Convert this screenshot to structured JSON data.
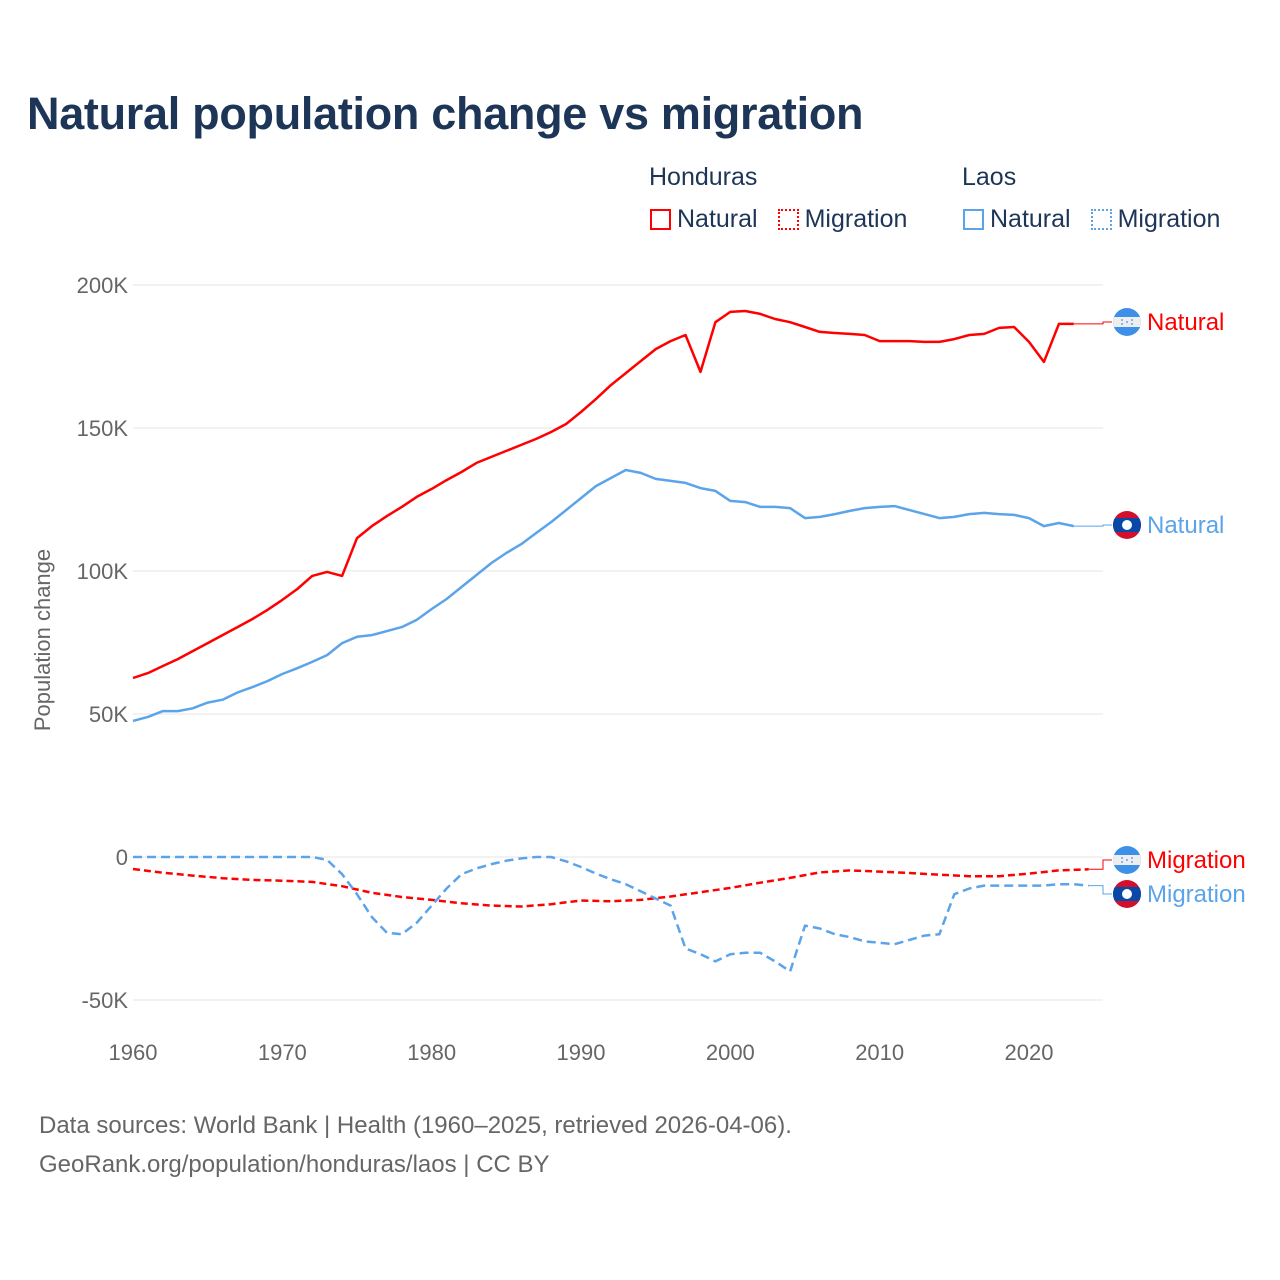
{
  "title": "Natural population change vs migration",
  "legend": {
    "groups": [
      {
        "name": "Honduras",
        "items": [
          "Natural",
          "Migration"
        ],
        "color": "#ff0000"
      },
      {
        "name": "Laos",
        "items": [
          "Natural",
          "Migration"
        ],
        "color": "#5ba4ea"
      }
    ]
  },
  "footer": {
    "line1": "Data sources: World Bank | Health (1960–2025, retrieved 2026-04-06).",
    "line2": "GeoRank.org/population/honduras/laos | CC BY"
  },
  "chart_data": {
    "type": "line",
    "title": "Natural population change vs migration",
    "xlabel": "",
    "ylabel": "Population change",
    "xlim": [
      1960,
      2025
    ],
    "ylim": [
      -50000,
      200000
    ],
    "x_ticks": [
      "1960",
      "1970",
      "1980",
      "1990",
      "2000",
      "2010",
      "2020"
    ],
    "y_ticks": [
      {
        "value": 200000,
        "label": "200K"
      },
      {
        "value": 150000,
        "label": "150K"
      },
      {
        "value": 100000,
        "label": "100K"
      },
      {
        "value": 50000,
        "label": "50K"
      },
      {
        "value": 0,
        "label": "0"
      },
      {
        "value": -50000,
        "label": "-50K"
      }
    ],
    "grid": true,
    "legend_position": "top-right",
    "series": [
      {
        "name": "Honduras Natural",
        "label": "Natural",
        "country": "Honduras",
        "color": "#ff0000",
        "dash": false,
        "x": [
          1960,
          1961,
          1962,
          1963,
          1964,
          1965,
          1966,
          1967,
          1968,
          1969,
          1970,
          1971,
          1972,
          1973,
          1974,
          1975,
          1976,
          1977,
          1978,
          1979,
          1980,
          1981,
          1982,
          1983,
          1984,
          1985,
          1986,
          1987,
          1988,
          1989,
          1990,
          1991,
          1992,
          1993,
          1994,
          1995,
          1996,
          1997,
          1998,
          1999,
          2000,
          2001,
          2002,
          2003,
          2004,
          2005,
          2006,
          2007,
          2008,
          2009,
          2010,
          2011,
          2012,
          2013,
          2014,
          2015,
          2016,
          2017,
          2018,
          2019,
          2020,
          2021,
          2022,
          2023
        ],
        "values": [
          62600,
          64300,
          66800,
          69200,
          72000,
          74800,
          77600,
          80400,
          83200,
          86400,
          89900,
          93700,
          98300,
          99700,
          98300,
          111500,
          115700,
          119200,
          122400,
          125900,
          128700,
          131800,
          134600,
          137800,
          139900,
          142000,
          144100,
          146200,
          148600,
          151400,
          155600,
          160100,
          165000,
          169200,
          173400,
          177600,
          180400,
          182500,
          169600,
          187000,
          190600,
          190900,
          189900,
          188100,
          187000,
          185300,
          183600,
          183200,
          182900,
          182500,
          180400,
          180400,
          180400,
          180100,
          180100,
          181100,
          182500,
          182900,
          185000,
          185300,
          180100,
          173100,
          186400,
          186400
        ]
      },
      {
        "name": "Laos Natural",
        "label": "Natural",
        "country": "Laos",
        "color": "#5ba4ea",
        "dash": false,
        "x": [
          1960,
          1961,
          1962,
          1963,
          1964,
          1965,
          1966,
          1967,
          1968,
          1969,
          1970,
          1971,
          1972,
          1973,
          1974,
          1975,
          1976,
          1977,
          1978,
          1979,
          1980,
          1981,
          1982,
          1983,
          1984,
          1985,
          1986,
          1987,
          1988,
          1989,
          1990,
          1991,
          1992,
          1993,
          1994,
          1995,
          1996,
          1997,
          1998,
          1999,
          2000,
          2001,
          2002,
          2003,
          2004,
          2005,
          2006,
          2007,
          2008,
          2009,
          2010,
          2011,
          2012,
          2013,
          2014,
          2015,
          2016,
          2017,
          2018,
          2019,
          2020,
          2021,
          2022,
          2023
        ],
        "values": [
          47600,
          49000,
          51000,
          51000,
          52000,
          54000,
          55000,
          57500,
          59400,
          61500,
          64000,
          66000,
          68200,
          70600,
          74800,
          77000,
          77600,
          79000,
          80400,
          82900,
          86700,
          90200,
          94400,
          98600,
          102800,
          106300,
          109400,
          113300,
          117100,
          121300,
          125500,
          129700,
          132500,
          135300,
          134300,
          132200,
          131500,
          130800,
          129000,
          128000,
          124500,
          124100,
          122400,
          122400,
          122000,
          118500,
          118900,
          119900,
          121000,
          122000,
          122400,
          122700,
          121300,
          119900,
          118500,
          118900,
          119900,
          120300,
          119900,
          119600,
          118500,
          115700,
          116800,
          115700
        ]
      },
      {
        "name": "Honduras Migration",
        "label": "Migration",
        "country": "Honduras",
        "color": "#ff0000",
        "dash": true,
        "x": [
          1960,
          1962,
          1964,
          1966,
          1968,
          1970,
          1972,
          1974,
          1976,
          1978,
          1980,
          1982,
          1984,
          1986,
          1988,
          1990,
          1992,
          1994,
          1996,
          1998,
          2000,
          2002,
          2004,
          2006,
          2008,
          2010,
          2012,
          2014,
          2016,
          2018,
          2020,
          2022,
          2024
        ],
        "values": [
          -4200,
          -5500,
          -6500,
          -7400,
          -8000,
          -8300,
          -8700,
          -10200,
          -12500,
          -14000,
          -15000,
          -16200,
          -17000,
          -17300,
          -16500,
          -15200,
          -15500,
          -15000,
          -13800,
          -12300,
          -10800,
          -9000,
          -7300,
          -5400,
          -4700,
          -5100,
          -5600,
          -6200,
          -6700,
          -6700,
          -5800,
          -4700,
          -4300
        ]
      },
      {
        "name": "Laos Migration",
        "label": "Migration",
        "country": "Laos",
        "color": "#5ba4ea",
        "dash": true,
        "x": [
          1960,
          1972,
          1973,
          1974,
          1975,
          1976,
          1977,
          1978,
          1979,
          1980,
          1981,
          1982,
          1983,
          1984,
          1985,
          1986,
          1987,
          1988,
          1989,
          1990,
          1991,
          1992,
          1993,
          1994,
          1995,
          1996,
          1997,
          1998,
          1999,
          2000,
          2001,
          2002,
          2003,
          2004,
          2005,
          2006,
          2007,
          2008,
          2009,
          2010,
          2011,
          2012,
          2013,
          2014,
          2015,
          2016,
          2017,
          2018,
          2019,
          2020,
          2021,
          2022,
          2023,
          2024
        ],
        "values": [
          0,
          0,
          -1000,
          -6000,
          -13000,
          -21000,
          -26500,
          -27000,
          -23000,
          -17000,
          -11000,
          -6000,
          -4000,
          -2500,
          -1300,
          -500,
          0,
          0,
          -1500,
          -3500,
          -5800,
          -7800,
          -9500,
          -12000,
          -14500,
          -17000,
          -32000,
          -34000,
          -36500,
          -34000,
          -33500,
          -33500,
          -36500,
          -40000,
          -24000,
          -25000,
          -27000,
          -28000,
          -29500,
          -30000,
          -30500,
          -29000,
          -27500,
          -27000,
          -13000,
          -11000,
          -10000,
          -10000,
          -10000,
          -10000,
          -10000,
          -9500,
          -9500,
          -10000
        ]
      }
    ]
  }
}
